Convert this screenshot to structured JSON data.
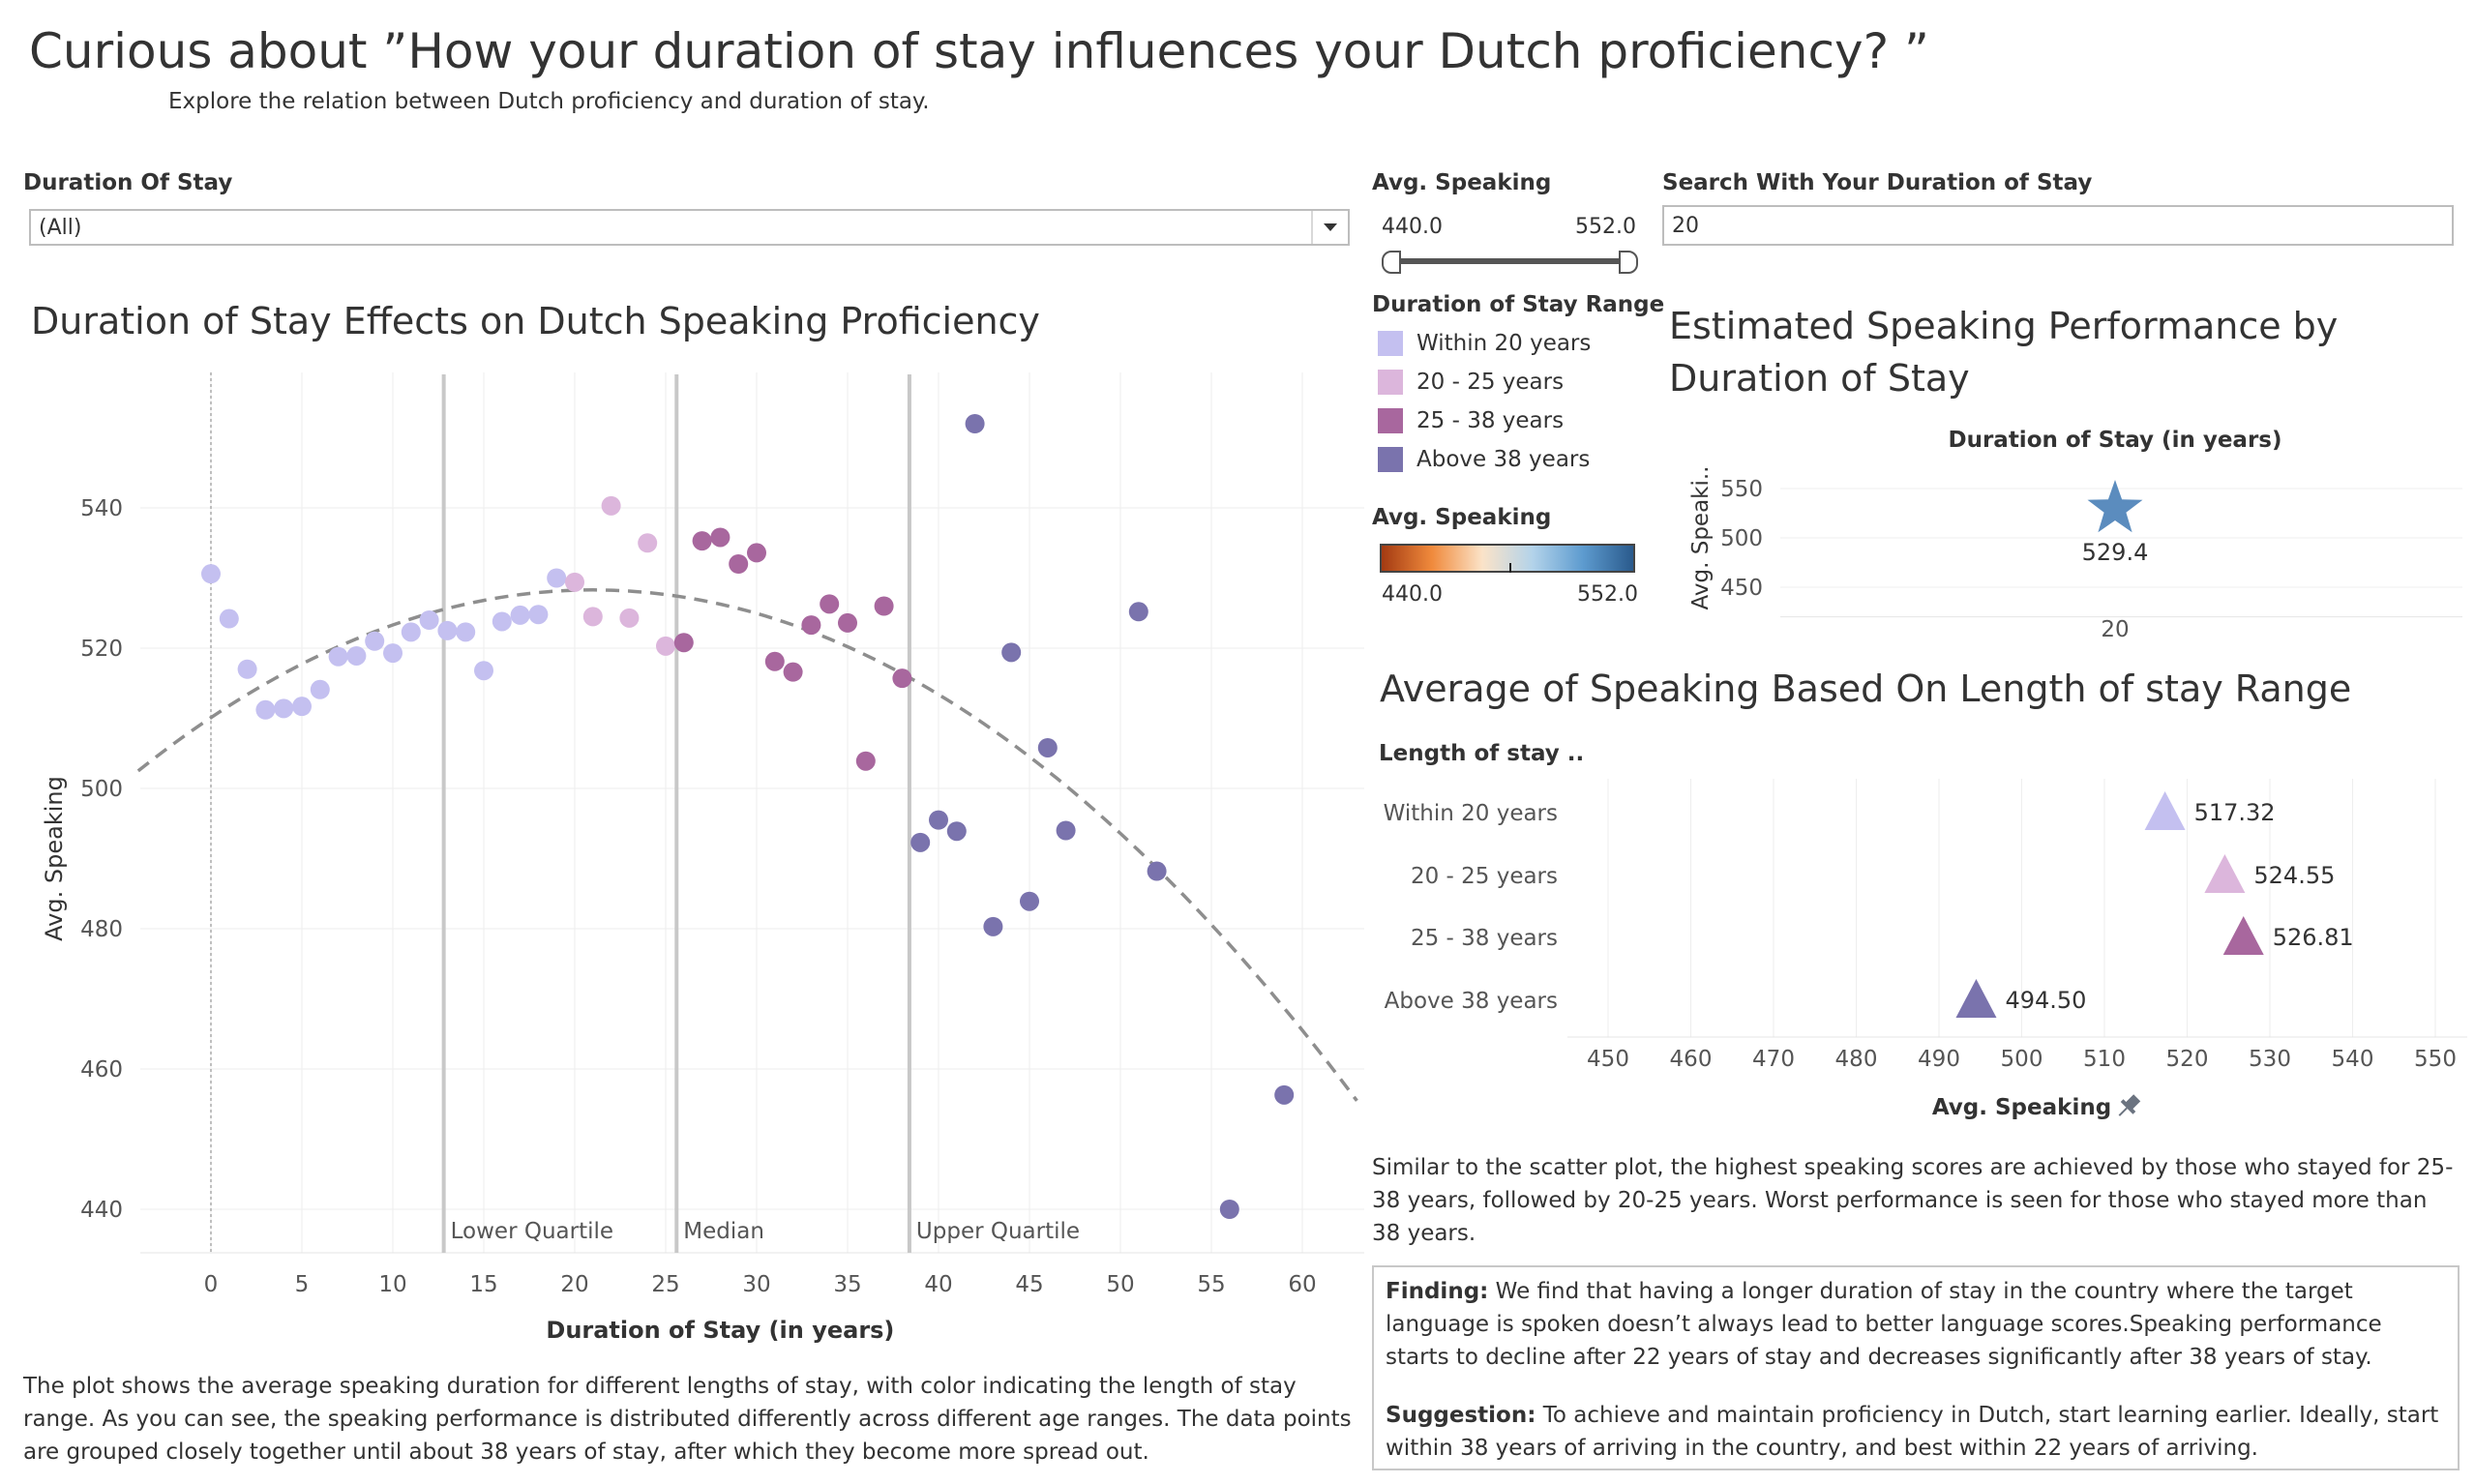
{
  "header": {
    "title": "Curious about ”How your duration of stay influences your Dutch proficiency? ”",
    "subtitle": "Explore the relation between Dutch proficiency and duration of stay."
  },
  "filters": {
    "duration_label": "Duration Of Stay",
    "duration_value": "(All)",
    "speaking_label": "Avg. Speaking",
    "speaking_min": "440.0",
    "speaking_max": "552.0",
    "search_label": "Search With Your Duration of Stay",
    "search_value": "20"
  },
  "legend": {
    "range_title": "Duration of Stay Range",
    "items": [
      {
        "label": "Within 20 years",
        "color": "#c4c0f0"
      },
      {
        "label": "20 - 25 years",
        "color": "#dcb6dc"
      },
      {
        "label": "25 - 38 years",
        "color": "#a8679e"
      },
      {
        "label": "Above 38 years",
        "color": "#7a73ad"
      }
    ],
    "gradient_title": "Avg. Speaking",
    "gradient_min": "440.0",
    "gradient_max": "552.0",
    "gradient_colors": [
      "#a33a12",
      "#f08a3c",
      "#fbe3c8",
      "#b3d3ea",
      "#5d9bcf",
      "#2a5a8c"
    ]
  },
  "scatter": {
    "title": "Duration of Stay Effects on Dutch Speaking Proficiency",
    "text": "The plot shows the average speaking duration for different lengths of stay, with color indicating the length of stay range. As you can see, the speaking performance is distributed differently across different age ranges. The data points are grouped closely together until about 38 years of stay, after which they become more spread out."
  },
  "estimate": {
    "title": "Estimated Speaking Performance by Duration of Stay"
  },
  "range_chart": {
    "title": "Average of Speaking Based On Length of stay Range",
    "text": "Similar to the scatter plot, the highest speaking scores are achieved by those who stayed for 25-38 years, followed by 20-25 years. Worst performance is seen for those who stayed more than 38 years.",
    "finding_label": "Finding:",
    "finding_text": " We find that having a longer duration of stay in the country where the target language is spoken doesn’t always lead to better language scores.Speaking performance starts to decline after 22 years of stay and decreases significantly after 38 years of stay.",
    "suggestion_label": "Suggestion:",
    "suggestion_text": " To achieve and maintain proficiency in Dutch, start learning earlier. Ideally, start within 38 years of arriving in the country, and best within 22 years of arriving."
  },
  "chart_data": [
    {
      "type": "scatter",
      "title": "Duration of Stay Effects on Dutch Speaking Proficiency",
      "xlabel": "Duration of Stay (in years)",
      "ylabel": "Avg. Speaking",
      "xlim": [
        -4,
        63
      ],
      "ylim": [
        433,
        555
      ],
      "xticks": [
        0,
        5,
        10,
        15,
        20,
        25,
        30,
        35,
        40,
        45,
        50,
        55,
        60
      ],
      "yticks": [
        440,
        460,
        480,
        500,
        520,
        540
      ],
      "grid": true,
      "trend": {
        "type": "quadratic",
        "style": "dashed",
        "peak_x": 21,
        "peak_y": 528.3,
        "points": [
          [
            -4,
            502.5
          ],
          [
            0,
            510.5
          ],
          [
            21,
            528.3
          ],
          [
            40,
            515
          ],
          [
            63,
            444
          ]
        ]
      },
      "reference_lines": [
        {
          "label": "Lower Quartile",
          "x": 12.8
        },
        {
          "label": "Median",
          "x": 25.6
        },
        {
          "label": "Upper Quartile",
          "x": 38.4
        }
      ],
      "series": [
        {
          "name": "Within 20 years",
          "color": "#c4c0f0",
          "points": [
            [
              0,
              530.6
            ],
            [
              1,
              524.2
            ],
            [
              2,
              517.0
            ],
            [
              3,
              511.2
            ],
            [
              4,
              511.4
            ],
            [
              5,
              511.7
            ],
            [
              6,
              514.1
            ],
            [
              7,
              518.8
            ],
            [
              8,
              518.9
            ],
            [
              9,
              521.0
            ],
            [
              10,
              519.3
            ],
            [
              11,
              522.3
            ],
            [
              12,
              524.0
            ],
            [
              13,
              522.5
            ],
            [
              14,
              522.3
            ],
            [
              15,
              516.8
            ],
            [
              16,
              523.8
            ],
            [
              17,
              524.7
            ],
            [
              18,
              524.8
            ],
            [
              19,
              530.0
            ]
          ]
        },
        {
          "name": "20 - 25 years",
          "color": "#dcb6dc",
          "points": [
            [
              20,
              529.4
            ],
            [
              21,
              524.5
            ],
            [
              22,
              540.3
            ],
            [
              23,
              524.3
            ],
            [
              24,
              535.0
            ],
            [
              25,
              520.3
            ]
          ]
        },
        {
          "name": "25 - 38 years",
          "color": "#a8679e",
          "points": [
            [
              26,
              520.8
            ],
            [
              27,
              535.3
            ],
            [
              28,
              535.8
            ],
            [
              29,
              532.0
            ],
            [
              30,
              533.6
            ],
            [
              31,
              518.1
            ],
            [
              32,
              516.6
            ],
            [
              33,
              523.3
            ],
            [
              34,
              526.3
            ],
            [
              35,
              523.6
            ],
            [
              36,
              503.9
            ],
            [
              37,
              526.0
            ],
            [
              38,
              515.7
            ]
          ]
        },
        {
          "name": "Above 38 years",
          "color": "#7a73ad",
          "points": [
            [
              39,
              492.3
            ],
            [
              40,
              495.5
            ],
            [
              41,
              493.9
            ],
            [
              42,
              552.0
            ],
            [
              43,
              480.3
            ],
            [
              44,
              519.4
            ],
            [
              45,
              483.9
            ],
            [
              46,
              505.8
            ],
            [
              47,
              494.0
            ],
            [
              51,
              525.2
            ],
            [
              52,
              488.2
            ],
            [
              56,
              440.0
            ],
            [
              59,
              456.3
            ]
          ]
        }
      ]
    },
    {
      "type": "scatter",
      "title": "Estimated Speaking Performance by Duration of Stay",
      "xlabel": "Duration of Stay (in years)",
      "ylabel": "Avg. Speaki..",
      "categories": [
        "20"
      ],
      "yticks": [
        450,
        500,
        550
      ],
      "ylim": [
        420,
        570
      ],
      "points": [
        {
          "x": "20",
          "y": 529.4,
          "label": "529.4",
          "marker": "star",
          "color": "#5b8cbe"
        }
      ]
    },
    {
      "type": "scatter",
      "title": "Average of Speaking Based On Length of stay Range",
      "ylabel": "Length of stay ..",
      "xlabel": "Avg. Speaking",
      "xlim": [
        447,
        555
      ],
      "xticks": [
        450,
        460,
        470,
        480,
        490,
        500,
        510,
        520,
        530,
        540,
        550
      ],
      "categories": [
        "Within 20 years",
        "20 - 25 years",
        "25 - 38 years",
        "Above 38 years"
      ],
      "values": [
        517.32,
        524.55,
        526.81,
        494.5
      ],
      "labels": [
        "517.32",
        "524.55",
        "526.81",
        "494.50"
      ],
      "colors": [
        "#c4c0f0",
        "#dcb6dc",
        "#a8679e",
        "#7a73ad"
      ],
      "marker": "triangle"
    }
  ]
}
